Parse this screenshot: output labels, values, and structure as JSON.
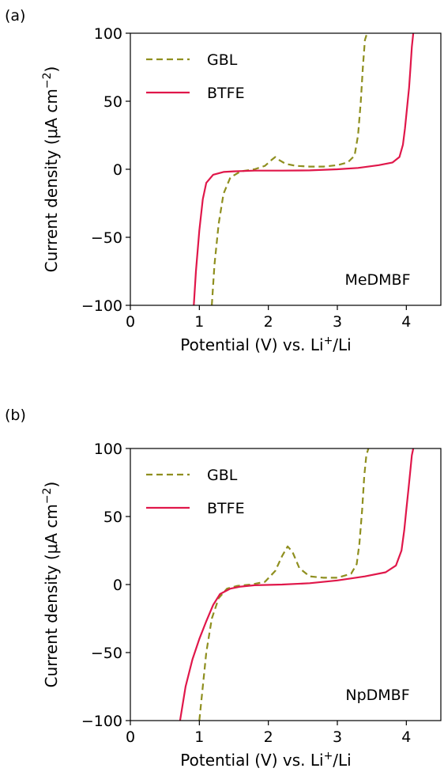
{
  "chart_data": [
    {
      "type": "line",
      "panel_label": "(a)",
      "annotation": "MeDMBF",
      "xlabel_parts": {
        "pre": "Potential (V) vs. Li",
        "sup": "+",
        "post": "/Li"
      },
      "ylabel_parts": {
        "pre": "Current density (μA cm",
        "sup": "−2",
        "post": ")"
      },
      "xlim": [
        0,
        4.5
      ],
      "ylim": [
        -100,
        100
      ],
      "xticks": [
        "0",
        "1",
        "2",
        "3",
        "4"
      ],
      "yticks": [
        "100",
        "50",
        "0",
        "−50",
        "−100"
      ],
      "legend_position": "upper-left",
      "series": [
        {
          "name": "GBL",
          "color": "#8f8f1f",
          "dash": "dashed",
          "x": [
            1.18,
            1.22,
            1.28,
            1.35,
            1.45,
            1.6,
            1.8,
            1.95,
            2.05,
            2.1,
            2.15,
            2.25,
            2.4,
            2.6,
            2.8,
            3.0,
            3.15,
            3.25,
            3.3,
            3.34,
            3.37,
            3.4,
            3.43
          ],
          "y": [
            -100,
            -70,
            -40,
            -18,
            -6,
            -1.5,
            0,
            2.5,
            7,
            9,
            7,
            4,
            2.5,
            2,
            2,
            3,
            5,
            10,
            25,
            50,
            75,
            95,
            100
          ]
        },
        {
          "name": "BTFE",
          "color": "#e0174a",
          "dash": "solid",
          "x": [
            0.92,
            0.95,
            1.0,
            1.05,
            1.1,
            1.2,
            1.35,
            1.5,
            1.8,
            2.2,
            2.6,
            3.0,
            3.3,
            3.6,
            3.8,
            3.9,
            3.95,
            3.98,
            4.01,
            4.04,
            4.06,
            4.08,
            4.1
          ],
          "y": [
            -100,
            -75,
            -45,
            -22,
            -10,
            -4,
            -2,
            -1.5,
            -1,
            -1,
            -0.8,
            0,
            1,
            3,
            5,
            9,
            18,
            30,
            45,
            60,
            75,
            90,
            100
          ]
        }
      ]
    },
    {
      "type": "line",
      "panel_label": "(b)",
      "annotation": "NpDMBF",
      "xlabel_parts": {
        "pre": "Potential (V) vs. Li",
        "sup": "+",
        "post": "/Li"
      },
      "ylabel_parts": {
        "pre": "Current density (μA cm",
        "sup": "−2",
        "post": ")"
      },
      "xlim": [
        0,
        4.5
      ],
      "ylim": [
        -100,
        100
      ],
      "xticks": [
        "0",
        "1",
        "2",
        "3",
        "4"
      ],
      "yticks": [
        "100",
        "50",
        "0",
        "−50",
        "−100"
      ],
      "legend_position": "upper-left",
      "series": [
        {
          "name": "GBL",
          "color": "#8f8f1f",
          "dash": "dashed",
          "x": [
            1.0,
            1.05,
            1.1,
            1.18,
            1.28,
            1.4,
            1.55,
            1.75,
            1.95,
            2.1,
            2.2,
            2.28,
            2.35,
            2.45,
            2.6,
            2.8,
            3.0,
            3.2,
            3.28,
            3.32,
            3.36,
            3.39,
            3.42,
            3.45
          ],
          "y": [
            -100,
            -75,
            -50,
            -25,
            -10,
            -3,
            -1,
            0,
            2,
            10,
            21,
            28,
            24,
            12,
            6,
            5,
            5,
            8,
            15,
            30,
            55,
            80,
            95,
            100
          ]
        },
        {
          "name": "BTFE",
          "color": "#e0174a",
          "dash": "solid",
          "x": [
            0.72,
            0.8,
            0.9,
            1.0,
            1.1,
            1.2,
            1.3,
            1.45,
            1.6,
            1.8,
            2.2,
            2.6,
            3.0,
            3.4,
            3.7,
            3.85,
            3.93,
            3.97,
            4.0,
            4.03,
            4.06,
            4.08,
            4.1
          ],
          "y": [
            -100,
            -75,
            -55,
            -40,
            -27,
            -15,
            -7,
            -3,
            -1.5,
            -0.5,
            0,
            1,
            3,
            6,
            9,
            14,
            25,
            40,
            55,
            70,
            85,
            95,
            100
          ]
        }
      ]
    }
  ]
}
